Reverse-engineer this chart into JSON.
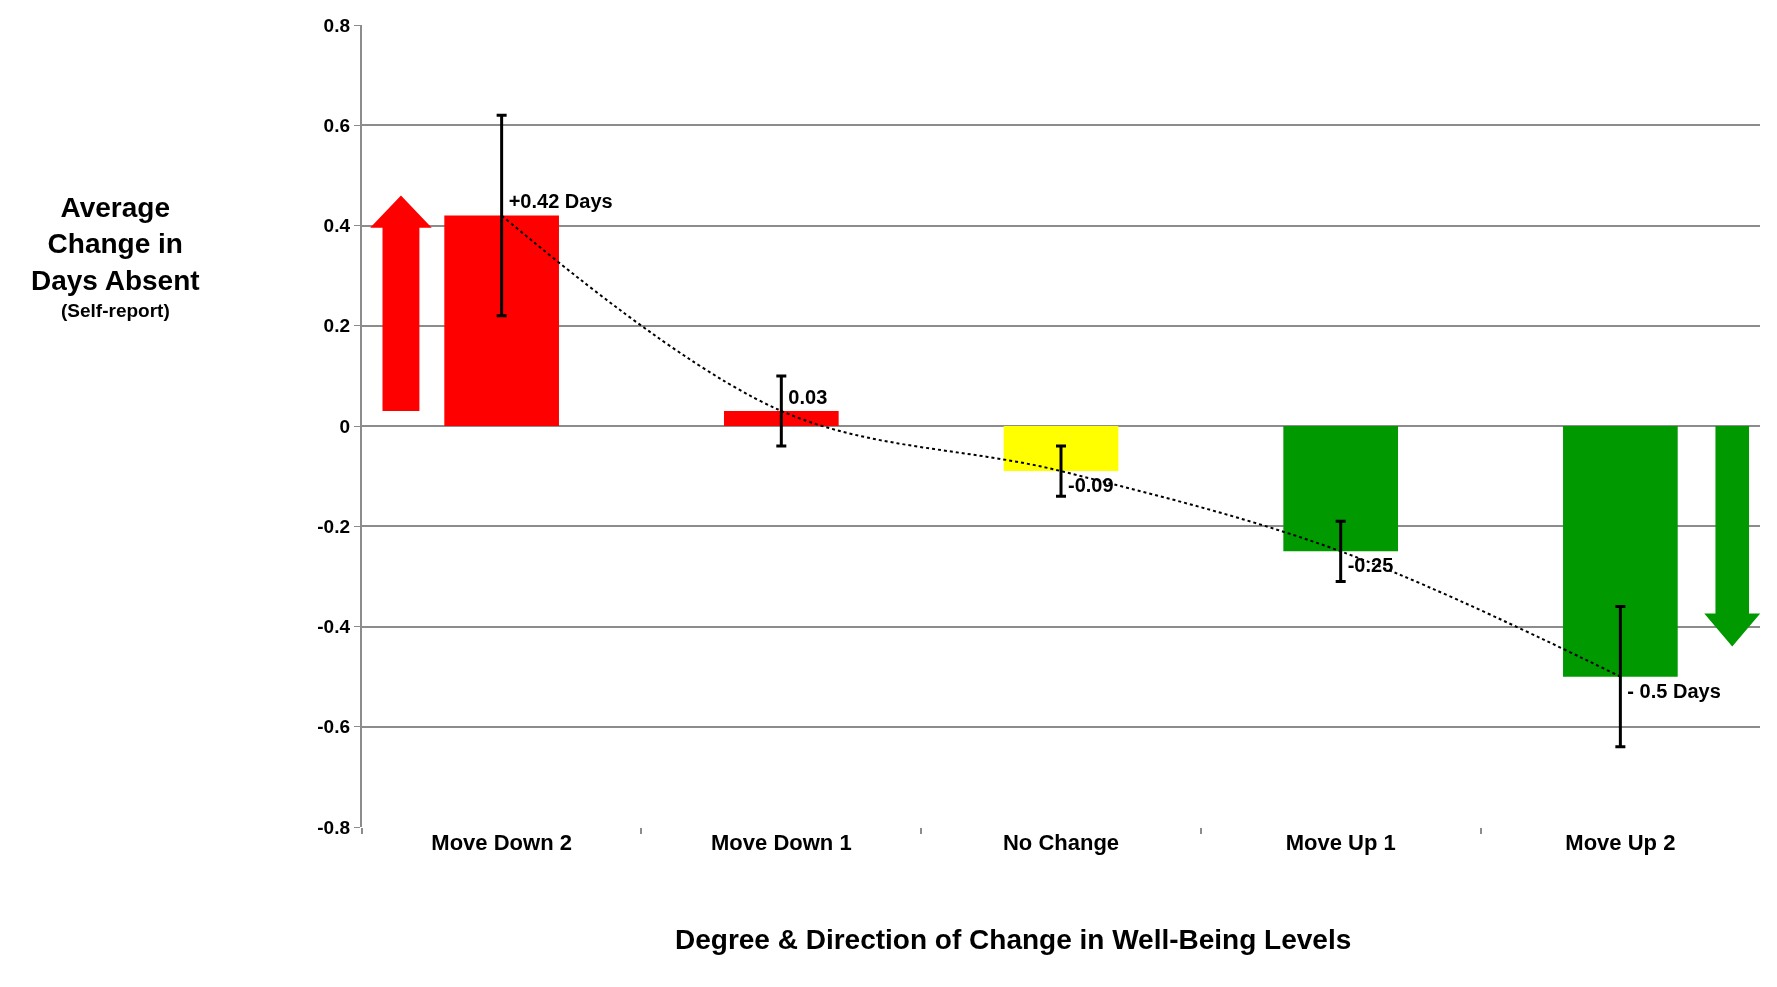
{
  "chart_data": {
    "type": "bar",
    "xlabel": "Degree & Direction of Change in Well-Being Levels",
    "ylabel": "Average Change in Days Absent",
    "annotations": [
      "(Self-report)"
    ],
    "categories": [
      "Move Down 2",
      "Move Down 1",
      "No Change",
      "Move Up 1",
      "Move Up 2"
    ],
    "series": [
      {
        "colors": [
          "#ff0000",
          "#ff0000",
          "#ffff00",
          "#009900",
          "#009900"
        ],
        "values": [
          0.42,
          0.03,
          -0.09,
          -0.25,
          -0.5
        ],
        "errors": [
          0.2,
          0.07,
          0.05,
          0.06,
          0.14
        ],
        "value_labels": [
          "+0.42 Days",
          "0.03",
          "-0.09",
          "-0.25",
          "- 0.5 Days"
        ]
      },
      {
        "type": "line",
        "color": "#000000",
        "line_style": "dotted",
        "marker": "none",
        "values": [
          0.42,
          0.03,
          -0.09,
          -0.25,
          -0.5
        ]
      }
    ],
    "ylim": [
      -0.8,
      0.8
    ],
    "yticks": [
      -0.8,
      -0.6,
      -0.4,
      -0.2,
      0,
      0.2,
      0.4,
      0.6,
      0.8
    ],
    "grid": "y"
  }
}
